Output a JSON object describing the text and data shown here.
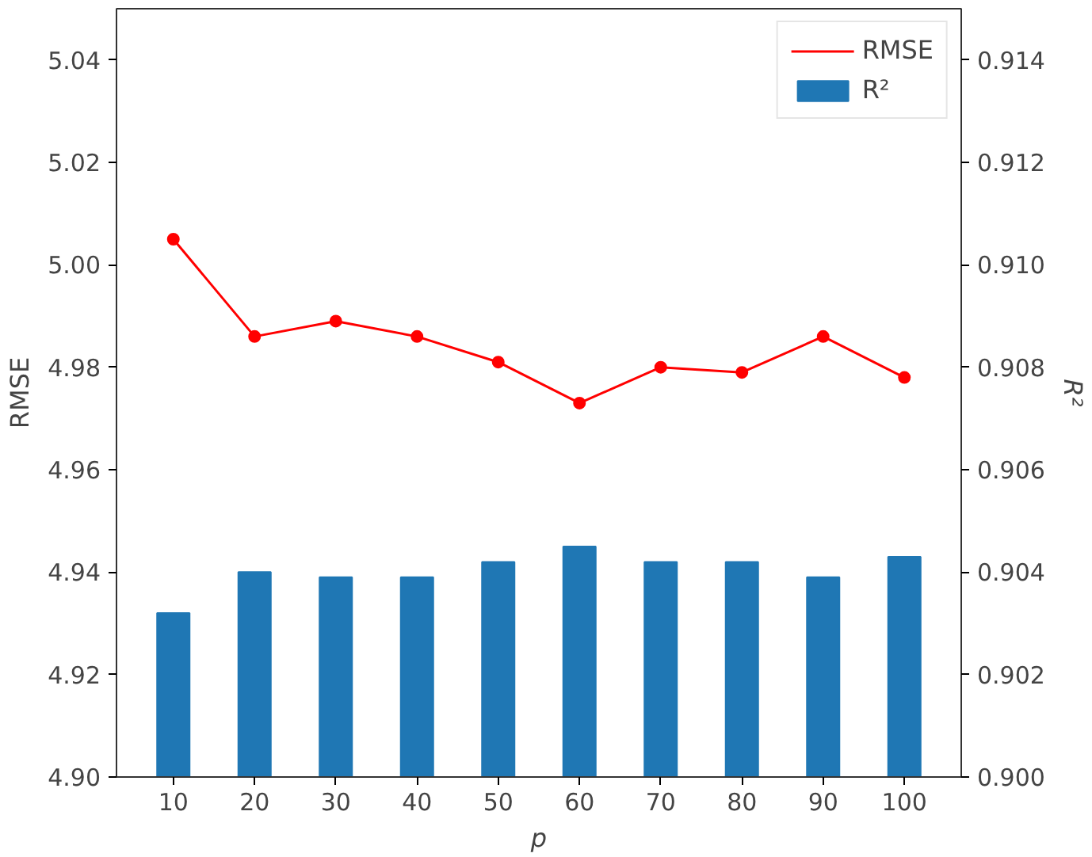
{
  "chart_data": {
    "type": "bar",
    "xlabel": "p",
    "ylabel": "RMSE",
    "y2label": "R²",
    "categories": [
      "10",
      "20",
      "30",
      "40",
      "50",
      "60",
      "70",
      "80",
      "90",
      "100"
    ],
    "series": [
      {
        "name": "RMSE",
        "type": "line",
        "axis": "y",
        "color": "#ff0000",
        "marker": "circle",
        "values": [
          5.005,
          4.986,
          4.989,
          4.986,
          4.981,
          4.973,
          4.98,
          4.979,
          4.986,
          4.978
        ]
      },
      {
        "name": "R²",
        "axis": "y2",
        "color": "#1f77b4",
        "values": [
          0.9032,
          0.904,
          0.9039,
          0.9039,
          0.9042,
          0.9045,
          0.9042,
          0.9042,
          0.9039,
          0.9043
        ]
      }
    ],
    "ylim": [
      4.9,
      5.05
    ],
    "yticks": [
      {
        "value": 4.9,
        "label": "4.90"
      },
      4.92,
      4.94,
      4.96,
      4.98,
      {
        "value": 5.0,
        "label": "5.00"
      },
      5.02,
      5.04
    ],
    "y2lim": [
      0.9,
      0.915
    ],
    "y2ticks": [
      {
        "value": 0.9,
        "label": "0.900"
      },
      0.902,
      0.904,
      0.906,
      0.908,
      {
        "value": 0.91,
        "label": "0.910"
      },
      0.912,
      0.914
    ],
    "legend": "top right",
    "grid": false
  }
}
